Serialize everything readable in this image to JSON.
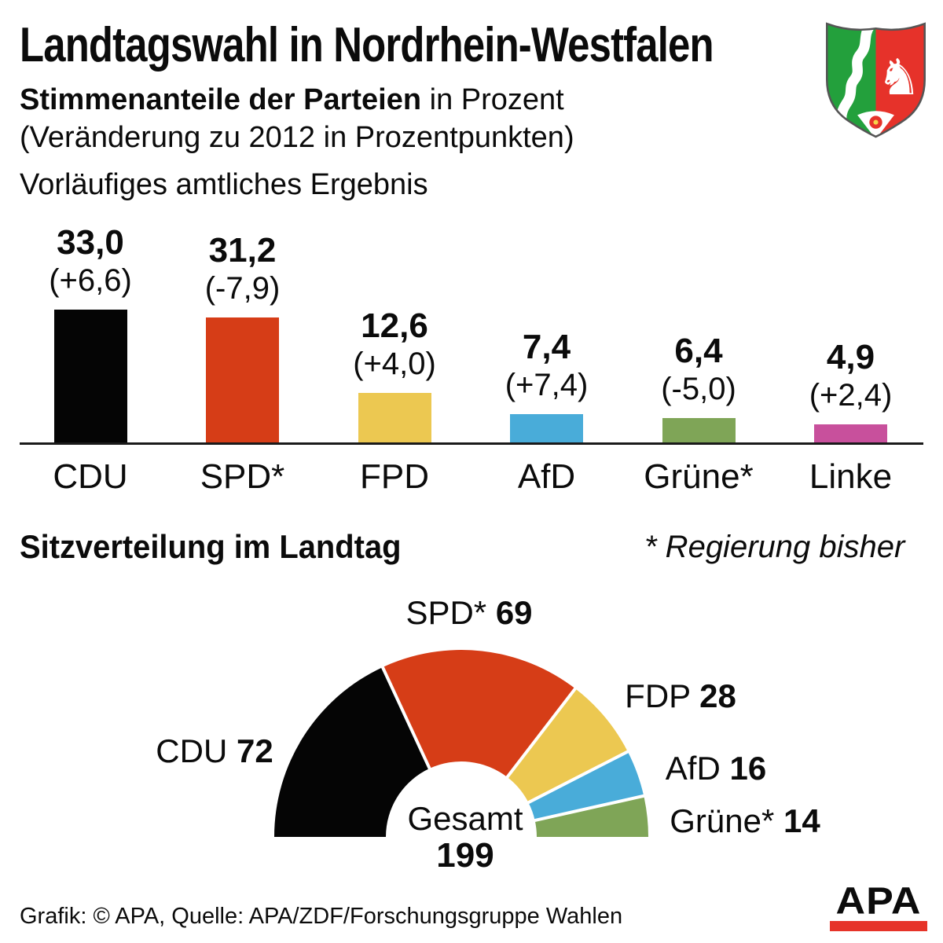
{
  "header": {
    "title": "Landtagswahl in Nordrhein-Westfalen",
    "subtitle_bold": "Stimmenanteile der Parteien",
    "subtitle_rest": " in Prozent",
    "subtitle_line2": "(Veränderung zu 2012 in Prozentpunkten)",
    "status_line": "Vorläufiges amtliches Ergebnis",
    "coat_of_arms": "nrw-coat-of-arms"
  },
  "section_seats": {
    "heading": "Sitzverteilung im Landtag",
    "footnote": "* Regierung bisher"
  },
  "chart_data": [
    {
      "type": "bar",
      "title": "Stimmenanteile der Parteien in Prozent",
      "subtitle": "(Veränderung zu 2012 in Prozentpunkten)",
      "note": "Vorläufiges amtliches Ergebnis",
      "categories": [
        "CDU",
        "SPD*",
        "FPD",
        "AfD",
        "Grüne*",
        "Linke"
      ],
      "values": [
        33.0,
        31.2,
        12.6,
        7.4,
        6.4,
        4.9
      ],
      "value_labels": [
        "33,0",
        "31,2",
        "12,6",
        "7,4",
        "6,4",
        "4,9"
      ],
      "changes": [
        "(+6,6)",
        "(-7,9)",
        "(+4,0)",
        "(+7,4)",
        "(-5,0)",
        "(+2,4)"
      ],
      "colors": [
        "#050505",
        "#d63d17",
        "#ecc851",
        "#49acd9",
        "#7fa557",
        "#c8509c"
      ],
      "xlabel": "",
      "ylabel": "Prozent",
      "ylim": [
        0,
        35
      ],
      "grid": false,
      "legend": false
    },
    {
      "type": "half-donut",
      "title": "Sitzverteilung im Landtag",
      "categories": [
        "CDU",
        "SPD*",
        "FDP",
        "AfD",
        "Grüne*"
      ],
      "values": [
        72,
        69,
        28,
        16,
        14
      ],
      "colors": [
        "#050505",
        "#d63d17",
        "#ecc851",
        "#49acd9",
        "#7fa557"
      ],
      "center_label": "Gesamt",
      "center_value": "199",
      "total": 199,
      "legend": false
    }
  ],
  "footer": {
    "credit": "Grafik: © APA, Quelle: APA/ZDF/Forschungsgruppe Wahlen",
    "logo_text": "APA",
    "logo_bar_color": "#e63329"
  },
  "colors": {
    "cdu": "#050505",
    "spd": "#d63d17",
    "fdp": "#ecc851",
    "afd": "#49acd9",
    "gruene": "#7fa557",
    "linke": "#c8509c",
    "shield_green": "#23a03c",
    "shield_red": "#e6322a",
    "apa_red": "#e63329"
  }
}
